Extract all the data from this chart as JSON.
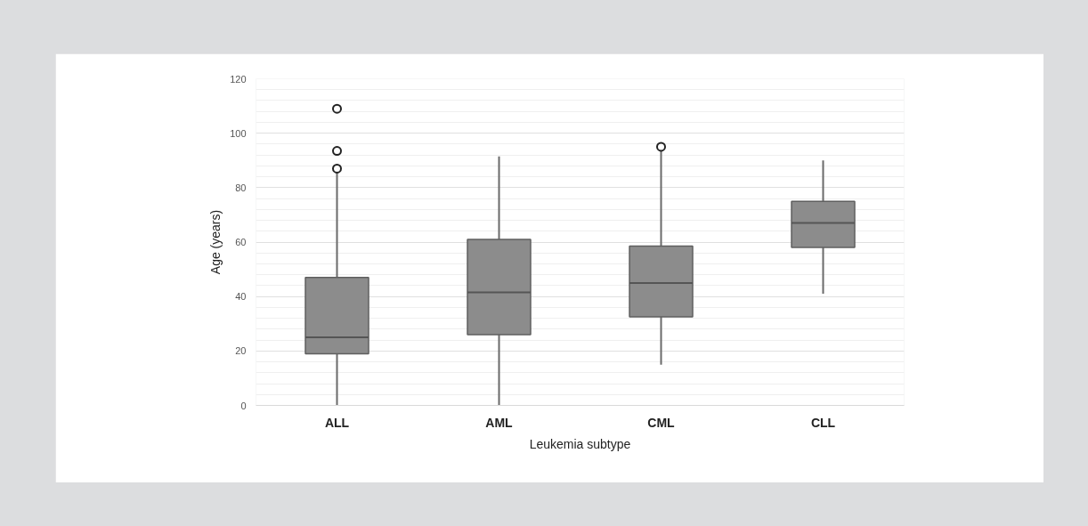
{
  "chart_data": {
    "type": "box",
    "xlabel": "Leukemia subtype",
    "ylabel": "Age (years)",
    "categories": [
      "ALL",
      "AML",
      "CML",
      "CLL"
    ],
    "color": "#8c8c8c",
    "boxes": [
      {
        "low": 0,
        "q1": 19,
        "median": 25,
        "q3": 47,
        "high": 86,
        "outliers": [
          87,
          93.5,
          109
        ]
      },
      {
        "low": 0,
        "q1": 26,
        "median": 41.5,
        "q3": 61,
        "high": 91.5
      },
      {
        "low": 15,
        "q1": 32.5,
        "median": 45,
        "q3": 58.5,
        "high": 94.5,
        "outliers": [
          95
        ]
      },
      {
        "low": 41,
        "q1": 58,
        "median": 67,
        "q3": 75,
        "high": 90
      }
    ],
    "ylim": [
      0,
      120
    ],
    "yticks": [
      0,
      {
        "value": 4,
        "label": null
      },
      {
        "value": 8,
        "label": null
      },
      {
        "value": 12,
        "label": null
      },
      {
        "value": 16,
        "label": null
      },
      20,
      {
        "value": 24,
        "label": null
      },
      {
        "value": 28,
        "label": null
      },
      {
        "value": 32,
        "label": null
      },
      {
        "value": 36,
        "label": null
      },
      40,
      {
        "value": 44,
        "label": null
      },
      {
        "value": 48,
        "label": null
      },
      {
        "value": 52,
        "label": null
      },
      {
        "value": 56,
        "label": null
      },
      60,
      {
        "value": 64,
        "label": null
      },
      {
        "value": 68,
        "label": null
      },
      {
        "value": 72,
        "label": null
      },
      {
        "value": 76,
        "label": null
      },
      80,
      {
        "value": 84,
        "label": null
      },
      {
        "value": 88,
        "label": null
      },
      {
        "value": 92,
        "label": null
      },
      {
        "value": 96,
        "label": null
      },
      100,
      {
        "value": 104,
        "label": null
      },
      {
        "value": 108,
        "label": null
      },
      {
        "value": 112,
        "label": null
      },
      {
        "value": 116,
        "label": null
      },
      120
    ],
    "grid": "y"
  }
}
